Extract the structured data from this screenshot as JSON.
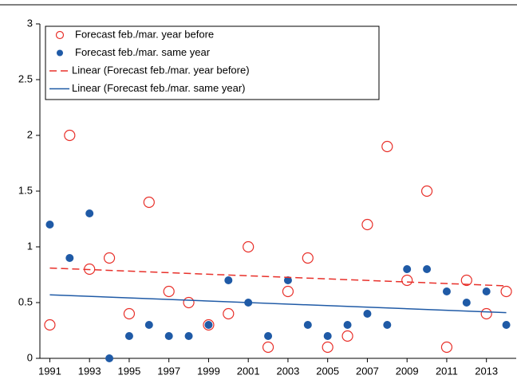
{
  "chart_data": {
    "type": "scatter",
    "x": [
      1991,
      1992,
      1993,
      1994,
      1995,
      1996,
      1997,
      1998,
      1999,
      2000,
      2001,
      2002,
      2003,
      2004,
      2005,
      2006,
      2007,
      2008,
      2009,
      2010,
      2011,
      2012,
      2013,
      2014
    ],
    "series": [
      {
        "name": "Forecast feb./mar. year before",
        "color": "#e8302a",
        "marker": "open-circle",
        "values": [
          0.3,
          2.0,
          0.8,
          0.9,
          0.4,
          1.4,
          0.6,
          0.5,
          0.3,
          0.4,
          1.0,
          0.1,
          0.6,
          0.9,
          0.1,
          0.2,
          1.2,
          1.9,
          0.7,
          1.5,
          0.1,
          0.7,
          0.4,
          0.6
        ]
      },
      {
        "name": "Forecast feb./mar. same year",
        "color": "#1f5aa6",
        "marker": "filled-circle",
        "values": [
          1.2,
          0.9,
          1.3,
          0,
          0.2,
          0.3,
          0.2,
          0.2,
          0.3,
          0.7,
          0.5,
          0.2,
          0.7,
          0.3,
          0.2,
          0.3,
          0.4,
          0.3,
          0.8,
          0.8,
          0.6,
          0.5,
          0.6,
          0.3
        ]
      },
      {
        "name": "Linear (Forecast feb./mar. year before)",
        "color": "#e8302a",
        "marker": "dashed-line",
        "x": [
          1991,
          2014
        ],
        "values": [
          0.81,
          0.65
        ]
      },
      {
        "name": "Linear (Forecast feb./mar. same year)",
        "color": "#1f5aa6",
        "marker": "solid-line",
        "x": [
          1991,
          2014
        ],
        "values": [
          0.57,
          0.41
        ]
      }
    ],
    "xlim": [
      1990.5,
      2014.5
    ],
    "xticks": [
      1991,
      1993,
      1995,
      1997,
      1999,
      2001,
      2003,
      2005,
      2007,
      2009,
      2011,
      2013
    ],
    "ylim": [
      0,
      3
    ],
    "yticks": [
      0,
      0.5,
      1,
      1.5,
      2,
      2.5,
      3
    ],
    "grid": false,
    "legend": "top-left"
  }
}
